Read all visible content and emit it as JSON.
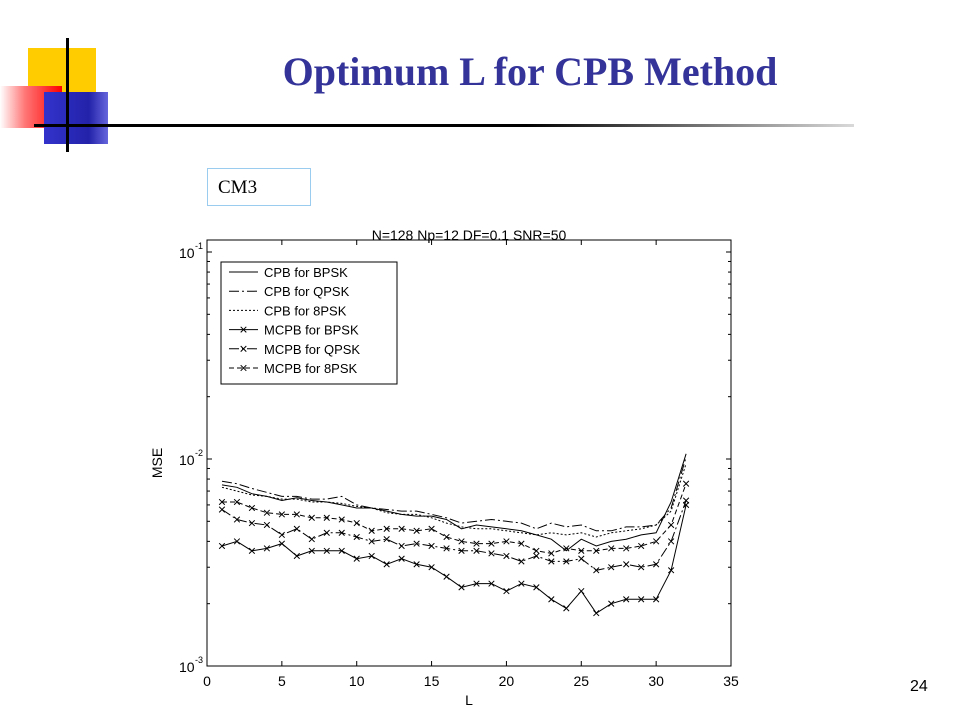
{
  "slide": {
    "title": "Optimum L for CPB Method",
    "tag": "CM3",
    "page_number": "24"
  },
  "chart_data": {
    "type": "line",
    "title": "N=128  Np=12  DF=0.1  SNR=50",
    "xlabel": "L",
    "ylabel": "MSE",
    "xlim": [
      0,
      35
    ],
    "ylim": [
      0.001,
      0.1
    ],
    "y_scale": "log",
    "x_ticks": [
      "0",
      "5",
      "10",
      "15",
      "20",
      "25",
      "30",
      "35"
    ],
    "y_ticks": [
      {
        "base": "10",
        "exp": "-3",
        "value": 0.001
      },
      {
        "base": "10",
        "exp": "-2",
        "value": 0.01
      },
      {
        "base": "10",
        "exp": "-1",
        "value": 0.1
      }
    ],
    "grid": false,
    "legend_position": "top-left",
    "x": [
      1,
      2,
      3,
      4,
      5,
      6,
      7,
      8,
      9,
      10,
      11,
      12,
      13,
      14,
      15,
      16,
      17,
      18,
      19,
      20,
      21,
      22,
      23,
      24,
      25,
      26,
      27,
      28,
      29,
      30,
      31,
      32
    ],
    "series": [
      {
        "name": "CPB for BPSK",
        "style": "solid",
        "marker": "none",
        "values": [
          0.0075,
          0.0073,
          0.0068,
          0.0066,
          0.0063,
          0.0065,
          0.0063,
          0.0062,
          0.006,
          0.0058,
          0.0058,
          0.0056,
          0.0054,
          0.0053,
          0.0053,
          0.0051,
          0.0046,
          0.0048,
          0.0047,
          0.0046,
          0.0045,
          0.0043,
          0.0041,
          0.0036,
          0.0041,
          0.0038,
          0.004,
          0.0041,
          0.0043,
          0.0044,
          0.0062,
          0.0106
        ]
      },
      {
        "name": "CPB for QPSK",
        "style": "dashdot",
        "marker": "none",
        "values": [
          0.0078,
          0.0076,
          0.0072,
          0.0069,
          0.0066,
          0.0066,
          0.0064,
          0.0064,
          0.0066,
          0.006,
          0.0058,
          0.0057,
          0.0056,
          0.0056,
          0.0054,
          0.0052,
          0.0049,
          0.005,
          0.0051,
          0.005,
          0.0049,
          0.0046,
          0.0049,
          0.0047,
          0.0048,
          0.0045,
          0.0045,
          0.0047,
          0.0047,
          0.0048,
          0.0058,
          0.0102
        ]
      },
      {
        "name": "CPB for 8PSK",
        "style": "dotted",
        "marker": "none",
        "values": [
          0.0073,
          0.007,
          0.0067,
          0.0066,
          0.0064,
          0.0064,
          0.0062,
          0.0062,
          0.0061,
          0.0059,
          0.0058,
          0.0055,
          0.0054,
          0.0054,
          0.0052,
          0.0049,
          0.0047,
          0.0046,
          0.0046,
          0.0045,
          0.0044,
          0.0043,
          0.0044,
          0.0043,
          0.0044,
          0.0042,
          0.0044,
          0.0045,
          0.0046,
          0.0048,
          0.0056,
          0.0095
        ]
      },
      {
        "name": "MCPB for BPSK",
        "style": "solid",
        "marker": "x",
        "values": [
          0.0038,
          0.004,
          0.0036,
          0.0037,
          0.0039,
          0.0034,
          0.0036,
          0.0036,
          0.0036,
          0.0033,
          0.0034,
          0.0031,
          0.0033,
          0.0031,
          0.003,
          0.0027,
          0.0024,
          0.0025,
          0.0025,
          0.0023,
          0.0025,
          0.0024,
          0.0021,
          0.0019,
          0.0023,
          0.0018,
          0.002,
          0.0021,
          0.0021,
          0.0021,
          0.0029,
          0.006
        ]
      },
      {
        "name": "MCPB for QPSK",
        "style": "dashdot",
        "marker": "x",
        "values": [
          0.0057,
          0.0051,
          0.0049,
          0.0048,
          0.0043,
          0.0046,
          0.0041,
          0.0044,
          0.0044,
          0.0042,
          0.004,
          0.0041,
          0.0038,
          0.0039,
          0.0038,
          0.0037,
          0.0036,
          0.0036,
          0.0035,
          0.0034,
          0.0032,
          0.0034,
          0.0032,
          0.0032,
          0.0033,
          0.0029,
          0.003,
          0.0031,
          0.003,
          0.0031,
          0.004,
          0.0063
        ]
      },
      {
        "name": "MCPB for 8PSK",
        "style": "dashed",
        "marker": "x",
        "values": [
          0.0062,
          0.0062,
          0.0058,
          0.0055,
          0.0054,
          0.0054,
          0.0052,
          0.0052,
          0.0051,
          0.0049,
          0.0045,
          0.0046,
          0.0046,
          0.0045,
          0.0046,
          0.0042,
          0.004,
          0.0039,
          0.0039,
          0.004,
          0.0039,
          0.0036,
          0.0035,
          0.0037,
          0.0036,
          0.0036,
          0.0037,
          0.0037,
          0.0038,
          0.004,
          0.0048,
          0.0076
        ]
      }
    ]
  }
}
